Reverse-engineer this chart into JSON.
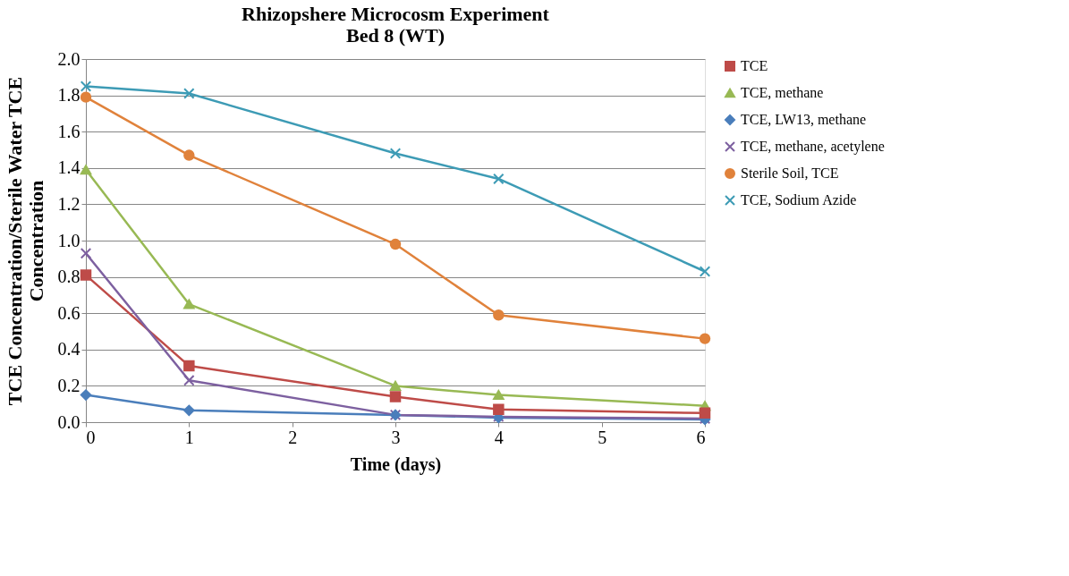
{
  "chart_data": {
    "type": "line",
    "title": "Rhizopshere Microcosm Experiment",
    "subtitle": "Bed 8 (WT)",
    "xlabel": "Time (days)",
    "ylabel": "TCE Concentration/Sterile Water TCE\nConcentration",
    "x": [
      0,
      1,
      3,
      4,
      6
    ],
    "xlim": [
      0,
      6
    ],
    "xticks": [
      0,
      1,
      2,
      3,
      4,
      5,
      6
    ],
    "ylim": [
      0,
      2
    ],
    "yticks": [
      {
        "value": 0,
        "label": "0.0"
      },
      {
        "value": 0.2,
        "label": "0.2"
      },
      {
        "value": 0.4,
        "label": "0.4"
      },
      {
        "value": 0.6,
        "label": "0.6"
      },
      {
        "value": 0.8,
        "label": "0.8"
      },
      {
        "value": 1.0,
        "label": "1.0"
      },
      {
        "value": 1.2,
        "label": "1.2"
      },
      {
        "value": 1.4,
        "label": "1.4"
      },
      {
        "value": 1.6,
        "label": "1.6"
      },
      {
        "value": 1.8,
        "label": "1.8"
      },
      {
        "value": 2.0,
        "label": "2.0"
      }
    ],
    "grid": "y",
    "legend": "right",
    "line_style": "solid",
    "series": [
      {
        "name": "TCE",
        "color": "#be4b48",
        "marker": "square",
        "values": [
          0.81,
          0.31,
          0.14,
          0.07,
          0.05
        ]
      },
      {
        "name": "TCE, methane",
        "color": "#98b954",
        "marker": "triangle",
        "values": [
          1.39,
          0.65,
          0.2,
          0.15,
          0.09
        ]
      },
      {
        "name": "TCE, LW13, methane",
        "color": "#4a7ebb",
        "marker": "diamond",
        "values": [
          0.15,
          0.065,
          0.04,
          0.025,
          0.015
        ]
      },
      {
        "name": "TCE, methane, acetylene",
        "color": "#7d60a0",
        "marker": "cross",
        "values": [
          0.93,
          0.23,
          0.04,
          0.03,
          0.02
        ]
      },
      {
        "name": "Sterile Soil, TCE",
        "color": "#e0823b",
        "marker": "circle",
        "values": [
          1.79,
          1.47,
          0.98,
          0.59,
          0.46
        ]
      },
      {
        "name": "TCE, Sodium Azide",
        "color": "#3d9bb5",
        "marker": "cross",
        "values": [
          1.85,
          1.81,
          1.48,
          1.34,
          0.83
        ]
      }
    ]
  }
}
